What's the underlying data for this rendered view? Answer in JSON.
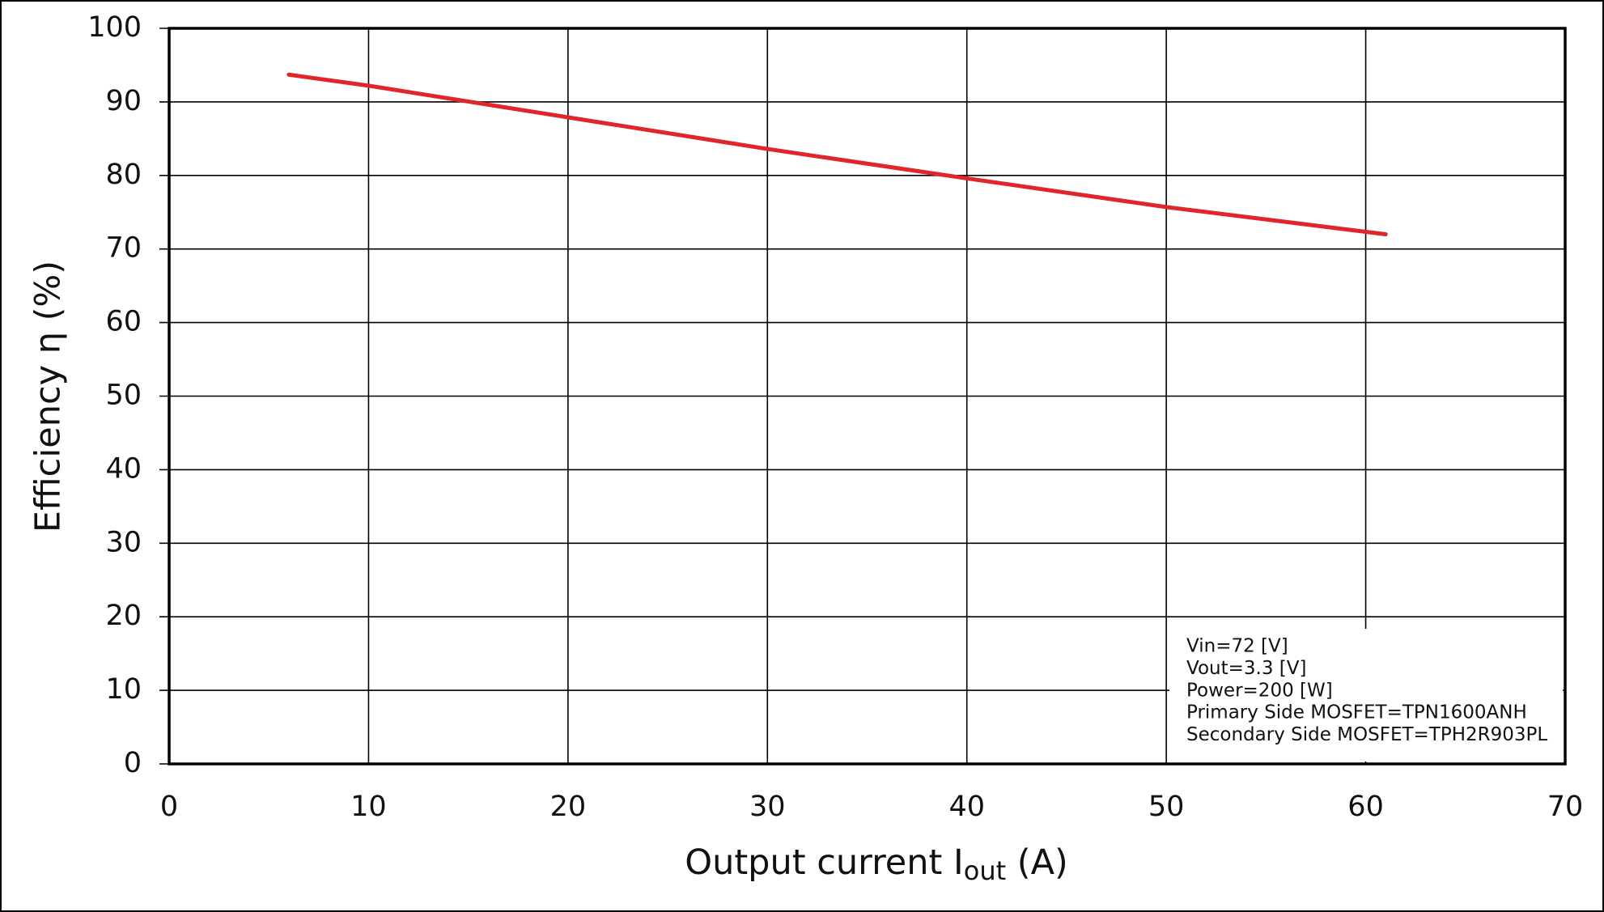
{
  "chart_data": {
    "type": "line",
    "xlabel": [
      "Output current  I",
      "out",
      " (A)"
    ],
    "ylabel": "Efficiency  η (%)",
    "x": [
      6,
      10,
      20,
      30,
      40,
      50,
      61
    ],
    "series": [
      {
        "name": "Efficiency",
        "color": "#e0262a",
        "values": [
          93.7,
          92.2,
          87.9,
          83.6,
          79.6,
          75.7,
          72.0
        ]
      }
    ],
    "xlim": [
      0,
      70
    ],
    "xticks": [
      0,
      10,
      20,
      30,
      40,
      50,
      60,
      70
    ],
    "ylim": [
      0,
      100
    ],
    "yticks": [
      0,
      10,
      20,
      30,
      40,
      50,
      60,
      70,
      80,
      90,
      100
    ],
    "grid": true,
    "annotation": [
      "Vin=72 [V]",
      "Vout=3.3 [V]",
      "Power=200 [W]",
      "Primary Side MOSFET=TPN1600ANH",
      "Secondary Side MOSFET=TPH2R903PL"
    ]
  }
}
